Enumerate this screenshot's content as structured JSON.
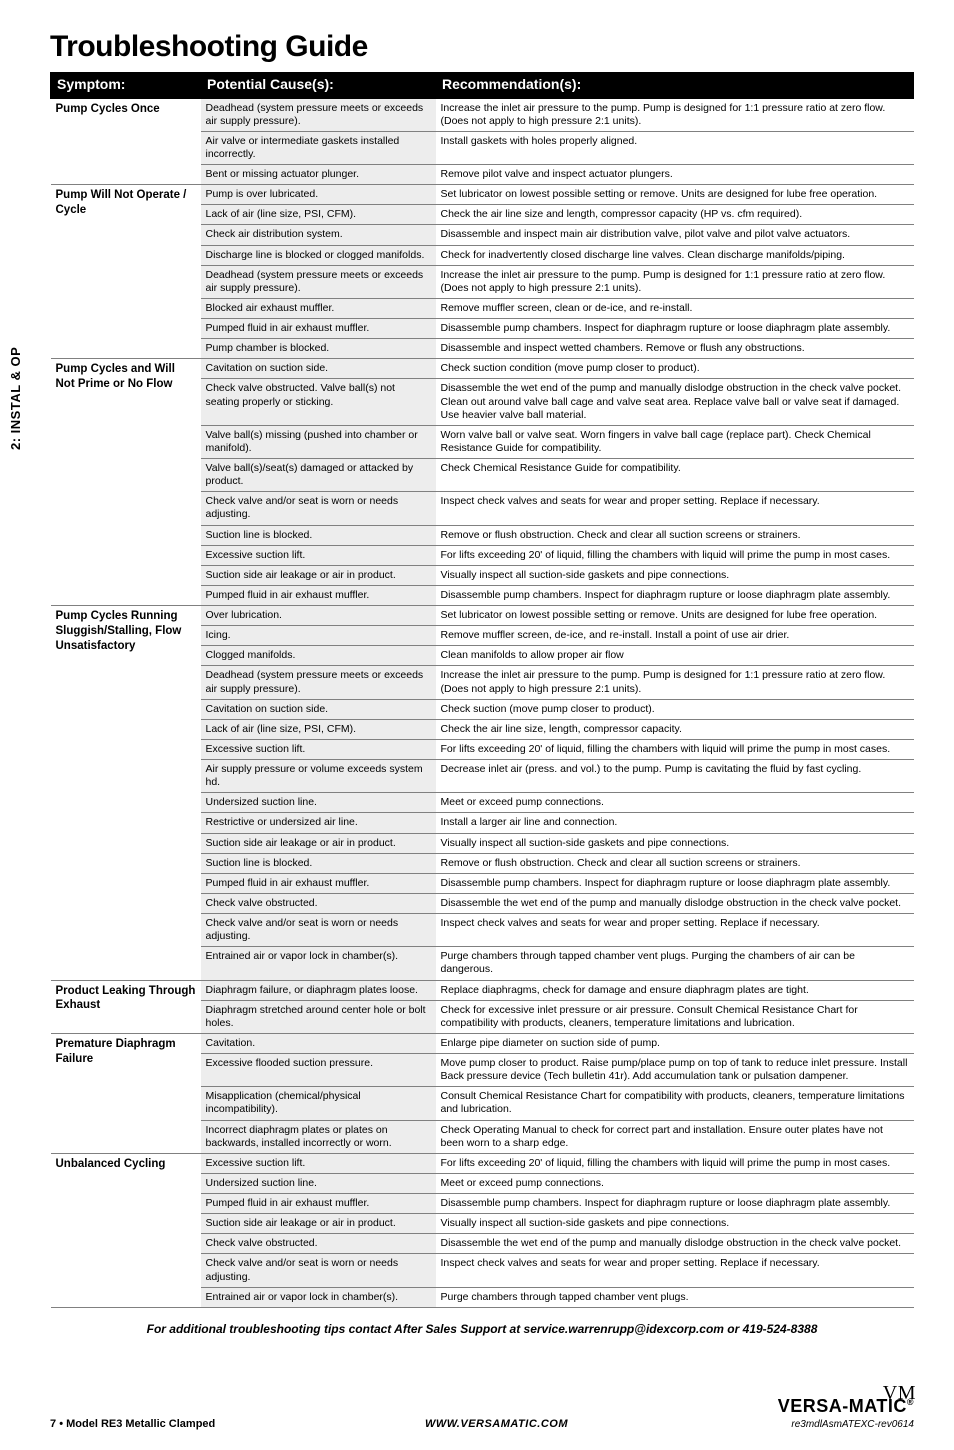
{
  "page_title": "Troubleshooting Guide",
  "side_tab": "2: INSTAL & OP",
  "columns": {
    "symptom": "Symptom:",
    "cause": "Potential Cause(s):",
    "rec": "Recommendation(s):"
  },
  "colors": {
    "header_bg": "#000000",
    "header_text": "#ffffff",
    "cause_bg": "#ededed",
    "border": "#808080"
  },
  "groups": [
    {
      "symptom": "Pump Cycles Once",
      "rows": [
        {
          "cause": "Deadhead (system pressure meets or exceeds air supply pressure).",
          "rec": "Increase the inlet air pressure to the pump. Pump is designed for 1:1 pressure ratio at zero flow. (Does not apply to high pressure 2:1 units)."
        },
        {
          "cause": "Air valve or intermediate gaskets installed incorrectly.",
          "rec": "Install gaskets with holes properly aligned."
        },
        {
          "cause": "Bent or missing actuator plunger.",
          "rec": "Remove pilot valve and inspect actuator plungers."
        }
      ]
    },
    {
      "symptom": "Pump Will Not Operate / Cycle",
      "rows": [
        {
          "cause": "Pump is over lubricated.",
          "rec": "Set lubricator on lowest possible setting or remove. Units are designed for lube free operation."
        },
        {
          "cause": "Lack of air (line size, PSI, CFM).",
          "rec": "Check the air line size and length, compressor capacity (HP vs. cfm required)."
        },
        {
          "cause": "Check air distribution system.",
          "rec": "Disassemble and inspect main air distribution valve, pilot valve and pilot valve actuators."
        },
        {
          "cause": "Discharge line is blocked or clogged manifolds.",
          "rec": "Check for inadvertently closed discharge line valves. Clean discharge manifolds/piping."
        },
        {
          "cause": "Deadhead (system pressure meets or exceeds air supply pressure).",
          "rec": "Increase the inlet air pressure to the pump. Pump is designed for 1:1 pressure ratio at zero flow. (Does not apply to high pressure 2:1 units)."
        },
        {
          "cause": "Blocked air exhaust muffler.",
          "rec": "Remove muffler screen, clean or de-ice, and re-install."
        },
        {
          "cause": "Pumped fluid in air exhaust muffler.",
          "rec": "Disassemble pump chambers. Inspect for diaphragm rupture or loose diaphragm plate assembly."
        },
        {
          "cause": "Pump chamber is blocked.",
          "rec": "Disassemble and inspect wetted chambers. Remove or flush any obstructions."
        }
      ]
    },
    {
      "symptom": "Pump Cycles and Will Not Prime or No Flow",
      "rows": [
        {
          "cause": "Cavitation on suction side.",
          "rec": "Check suction condition (move pump closer to product)."
        },
        {
          "cause": "Check valve obstructed. Valve ball(s) not seating properly or sticking.",
          "rec": "Disassemble the wet end of the pump and manually dislodge obstruction in the check valve pocket. Clean out around valve ball cage and valve seat area. Replace valve ball or valve seat if damaged. Use heavier valve ball material."
        },
        {
          "cause": "Valve ball(s) missing (pushed into chamber or manifold).",
          "rec": "Worn valve ball or valve seat. Worn fingers in valve ball cage (replace part). Check Chemical Resistance Guide for compatibility."
        },
        {
          "cause": "Valve ball(s)/seat(s) damaged or attacked by product.",
          "rec": "Check Chemical Resistance Guide for compatibility."
        },
        {
          "cause": "Check valve and/or seat is worn or needs adjusting.",
          "rec": "Inspect check valves and seats for wear and proper setting. Replace if necessary."
        },
        {
          "cause": "Suction line is blocked.",
          "rec": "Remove or flush obstruction. Check and clear all suction screens or strainers."
        },
        {
          "cause": "Excessive suction lift.",
          "rec": "For lifts exceeding 20' of liquid, filling the chambers with liquid will prime the pump in most cases."
        },
        {
          "cause": "Suction side air leakage or air in product.",
          "rec": "Visually inspect all suction-side gaskets and pipe connections."
        },
        {
          "cause": "Pumped fluid in air exhaust muffler.",
          "rec": "Disassemble pump chambers. Inspect for diaphragm rupture or loose diaphragm plate assembly."
        }
      ]
    },
    {
      "symptom": "Pump Cycles Running Sluggish/Stalling, Flow Unsatisfactory",
      "rows": [
        {
          "cause": "Over lubrication.",
          "rec": "Set lubricator on lowest possible setting or remove. Units are designed for lube free operation."
        },
        {
          "cause": "Icing.",
          "rec": "Remove muffler screen, de-ice, and re-install. Install a point of use air drier."
        },
        {
          "cause": "Clogged manifolds.",
          "rec": "Clean manifolds to allow proper air flow"
        },
        {
          "cause": "Deadhead (system pressure meets or exceeds air supply pressure).",
          "rec": "Increase the inlet air pressure to the pump. Pump is designed for 1:1 pressure ratio at zero flow. (Does not apply to high pressure 2:1 units)."
        },
        {
          "cause": "Cavitation on suction side.",
          "rec": "Check suction (move pump closer to product)."
        },
        {
          "cause": "Lack of air (line size, PSI, CFM).",
          "rec": "Check the air line size, length, compressor capacity."
        },
        {
          "cause": "Excessive suction lift.",
          "rec": "For lifts exceeding 20' of liquid, filling the chambers with liquid will prime the pump in most cases."
        },
        {
          "cause": "Air supply pressure or volume exceeds system hd.",
          "rec": "Decrease inlet air (press. and vol.) to the pump. Pump is cavitating the fluid by fast cycling."
        },
        {
          "cause": "Undersized suction line.",
          "rec": "Meet or exceed pump connections."
        },
        {
          "cause": "Restrictive or undersized air line.",
          "rec": "Install a larger air line and connection."
        },
        {
          "cause": "Suction side air leakage or air in product.",
          "rec": "Visually inspect all suction-side gaskets and pipe connections."
        },
        {
          "cause": "Suction line is blocked.",
          "rec": "Remove or flush obstruction. Check and clear all suction screens or strainers."
        },
        {
          "cause": "Pumped fluid in air exhaust muffler.",
          "rec": "Disassemble pump chambers. Inspect for diaphragm rupture or loose diaphragm plate assembly."
        },
        {
          "cause": "Check valve obstructed.",
          "rec": "Disassemble the wet end of the pump and manually dislodge obstruction in the check valve pocket."
        },
        {
          "cause": "Check valve and/or seat is worn or needs adjusting.",
          "rec": "Inspect check valves and seats for wear and proper setting. Replace if necessary."
        },
        {
          "cause": "Entrained air or vapor lock in chamber(s).",
          "rec": "Purge chambers through tapped chamber vent plugs. Purging the chambers of air can be dangerous."
        }
      ]
    },
    {
      "symptom": "Product Leaking Through Exhaust",
      "rows": [
        {
          "cause": "Diaphragm failure, or diaphragm plates loose.",
          "rec": "Replace diaphragms, check for damage and ensure diaphragm plates are tight."
        },
        {
          "cause": "Diaphragm stretched around center hole or bolt holes.",
          "rec": "Check for excessive inlet pressure or air pressure. Consult Chemical Resistance Chart for compatibility with products, cleaners, temperature limitations and lubrication."
        }
      ]
    },
    {
      "symptom": "Premature Diaphragm Failure",
      "rows": [
        {
          "cause": "Cavitation.",
          "rec": "Enlarge pipe diameter on suction side of pump."
        },
        {
          "cause": "Excessive flooded suction pressure.",
          "rec": "Move pump closer to product. Raise pump/place pump on top of tank to reduce inlet pressure. Install Back pressure device (Tech bulletin 41r). Add accumulation tank or pulsation dampener."
        },
        {
          "cause": "Misapplication (chemical/physical incompatibility).",
          "rec": "Consult Chemical Resistance Chart for compatibility with products, cleaners, temperature limitations and lubrication."
        },
        {
          "cause": "Incorrect diaphragm plates or plates on backwards, installed incorrectly or worn.",
          "rec": "Check Operating Manual to check for correct part and installation. Ensure outer plates have not been worn to a sharp edge."
        }
      ]
    },
    {
      "symptom": "Unbalanced Cycling",
      "rows": [
        {
          "cause": "Excessive suction lift.",
          "rec": "For lifts exceeding 20' of liquid, filling the chambers with liquid will prime the pump in most cases."
        },
        {
          "cause": "Undersized suction line.",
          "rec": "Meet or exceed pump connections."
        },
        {
          "cause": "Pumped fluid in air exhaust muffler.",
          "rec": "Disassemble pump chambers. Inspect for diaphragm rupture or loose diaphragm plate assembly."
        },
        {
          "cause": "Suction side air leakage or air in product.",
          "rec": "Visually inspect all suction-side gaskets and pipe connections."
        },
        {
          "cause": "Check valve obstructed.",
          "rec": "Disassemble the wet end of the pump and manually dislodge obstruction in the check valve pocket."
        },
        {
          "cause": "Check valve and/or seat is worn or needs adjusting.",
          "rec": "Inspect check valves and seats for wear and proper setting. Replace if necessary."
        },
        {
          "cause": "Entrained air or vapor lock in chamber(s).",
          "rec": "Purge chambers through tapped chamber vent plugs."
        }
      ]
    }
  ],
  "footnote": "For additional troubleshooting tips contact After Sales Support at service.warrenrupp@idexcorp.com or 419-524-8388",
  "footer": {
    "page_num": "7",
    "model": "Model RE3 Metallic Clamped",
    "site": "WWW.VERSAMATIC.COM",
    "logo_script": "VM",
    "logo_main": "VERSA-MATIC",
    "logo_reg": "®",
    "revcode": "re3mdlAsmATEXC-rev0614"
  }
}
